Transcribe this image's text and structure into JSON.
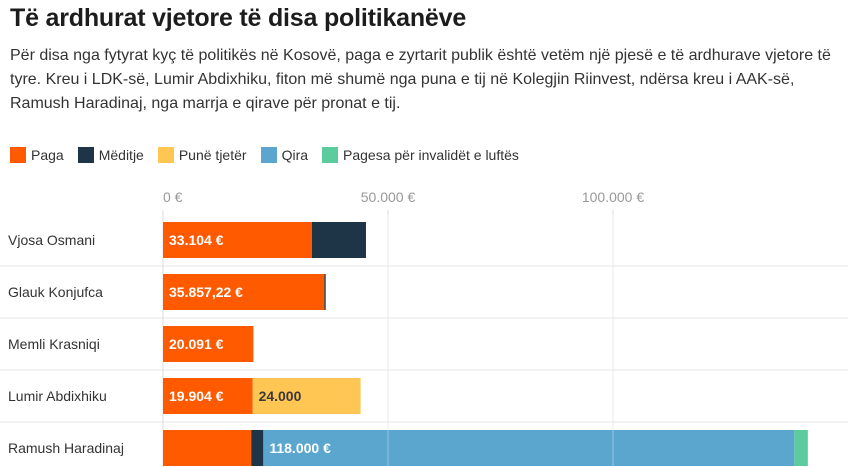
{
  "title": "Të ardhurat vjetore të disa politikanëve",
  "subtitle": "Për disa nga fytyrat kyç të politikës në Kosovë, paga e zyrtarit publik është vetëm një pjesë e të ardhurave vjetore të tyre. Kreu i LDK-së, Lumir Abdixhiku, fiton më shumë nga puna e tij në Kolegjin Riinvest, ndërsa kreu i AAK-së, Ramush Haradinaj, nga marrja e qirave për pronat e tij.",
  "legend": [
    {
      "label": "Paga",
      "color": "#ff5a00"
    },
    {
      "label": "Mëditje",
      "color": "#1e3547"
    },
    {
      "label": "Punë tjetër",
      "color": "#ffc653"
    },
    {
      "label": "Qira",
      "color": "#5ba6cf"
    },
    {
      "label": "Pagesa për invalidët e luftës",
      "color": "#5ccc9f"
    }
  ],
  "chart_data": {
    "type": "bar",
    "orientation": "horizontal",
    "stacked": true,
    "xlim": [
      0,
      150000
    ],
    "ticks": [
      {
        "value": 0,
        "label": "0 €"
      },
      {
        "value": 50000,
        "label": "50.000 €"
      },
      {
        "value": 100000,
        "label": "100.000 €"
      }
    ],
    "grid": true,
    "legend_position": "top-left",
    "categories": [
      "Vjosa Osmani",
      "Glauk Konjufca",
      "Memli Krasniqi",
      "Lumir Abdixhiku",
      "Ramush Haradinaj"
    ],
    "series": [
      {
        "name": "Paga",
        "color": "#ff5a00",
        "values": [
          33104,
          35857.22,
          20091,
          19904,
          19600
        ],
        "labels": [
          "33.104 €",
          "35.857,22 €",
          "20.091 €",
          "19.904 €",
          ""
        ]
      },
      {
        "name": "Mëditje",
        "color": "#1e3547",
        "values": [
          12000,
          300,
          0,
          0,
          2700
        ],
        "labels": [
          "",
          "",
          "",
          "",
          ""
        ]
      },
      {
        "name": "Punë tjetër",
        "color": "#ffc653",
        "values": [
          0,
          0,
          0,
          24000,
          0
        ],
        "labels": [
          "",
          "",
          "",
          "24.000",
          ""
        ]
      },
      {
        "name": "Qira",
        "color": "#5ba6cf",
        "values": [
          0,
          0,
          0,
          0,
          118000
        ],
        "labels": [
          "",
          "",
          "",
          "",
          "118.000 €"
        ]
      },
      {
        "name": "Pagesa për invalidët e luftës",
        "color": "#5ccc9f",
        "values": [
          0,
          0,
          0,
          0,
          3000
        ],
        "labels": [
          "",
          "",
          "",
          "",
          ""
        ]
      }
    ]
  }
}
